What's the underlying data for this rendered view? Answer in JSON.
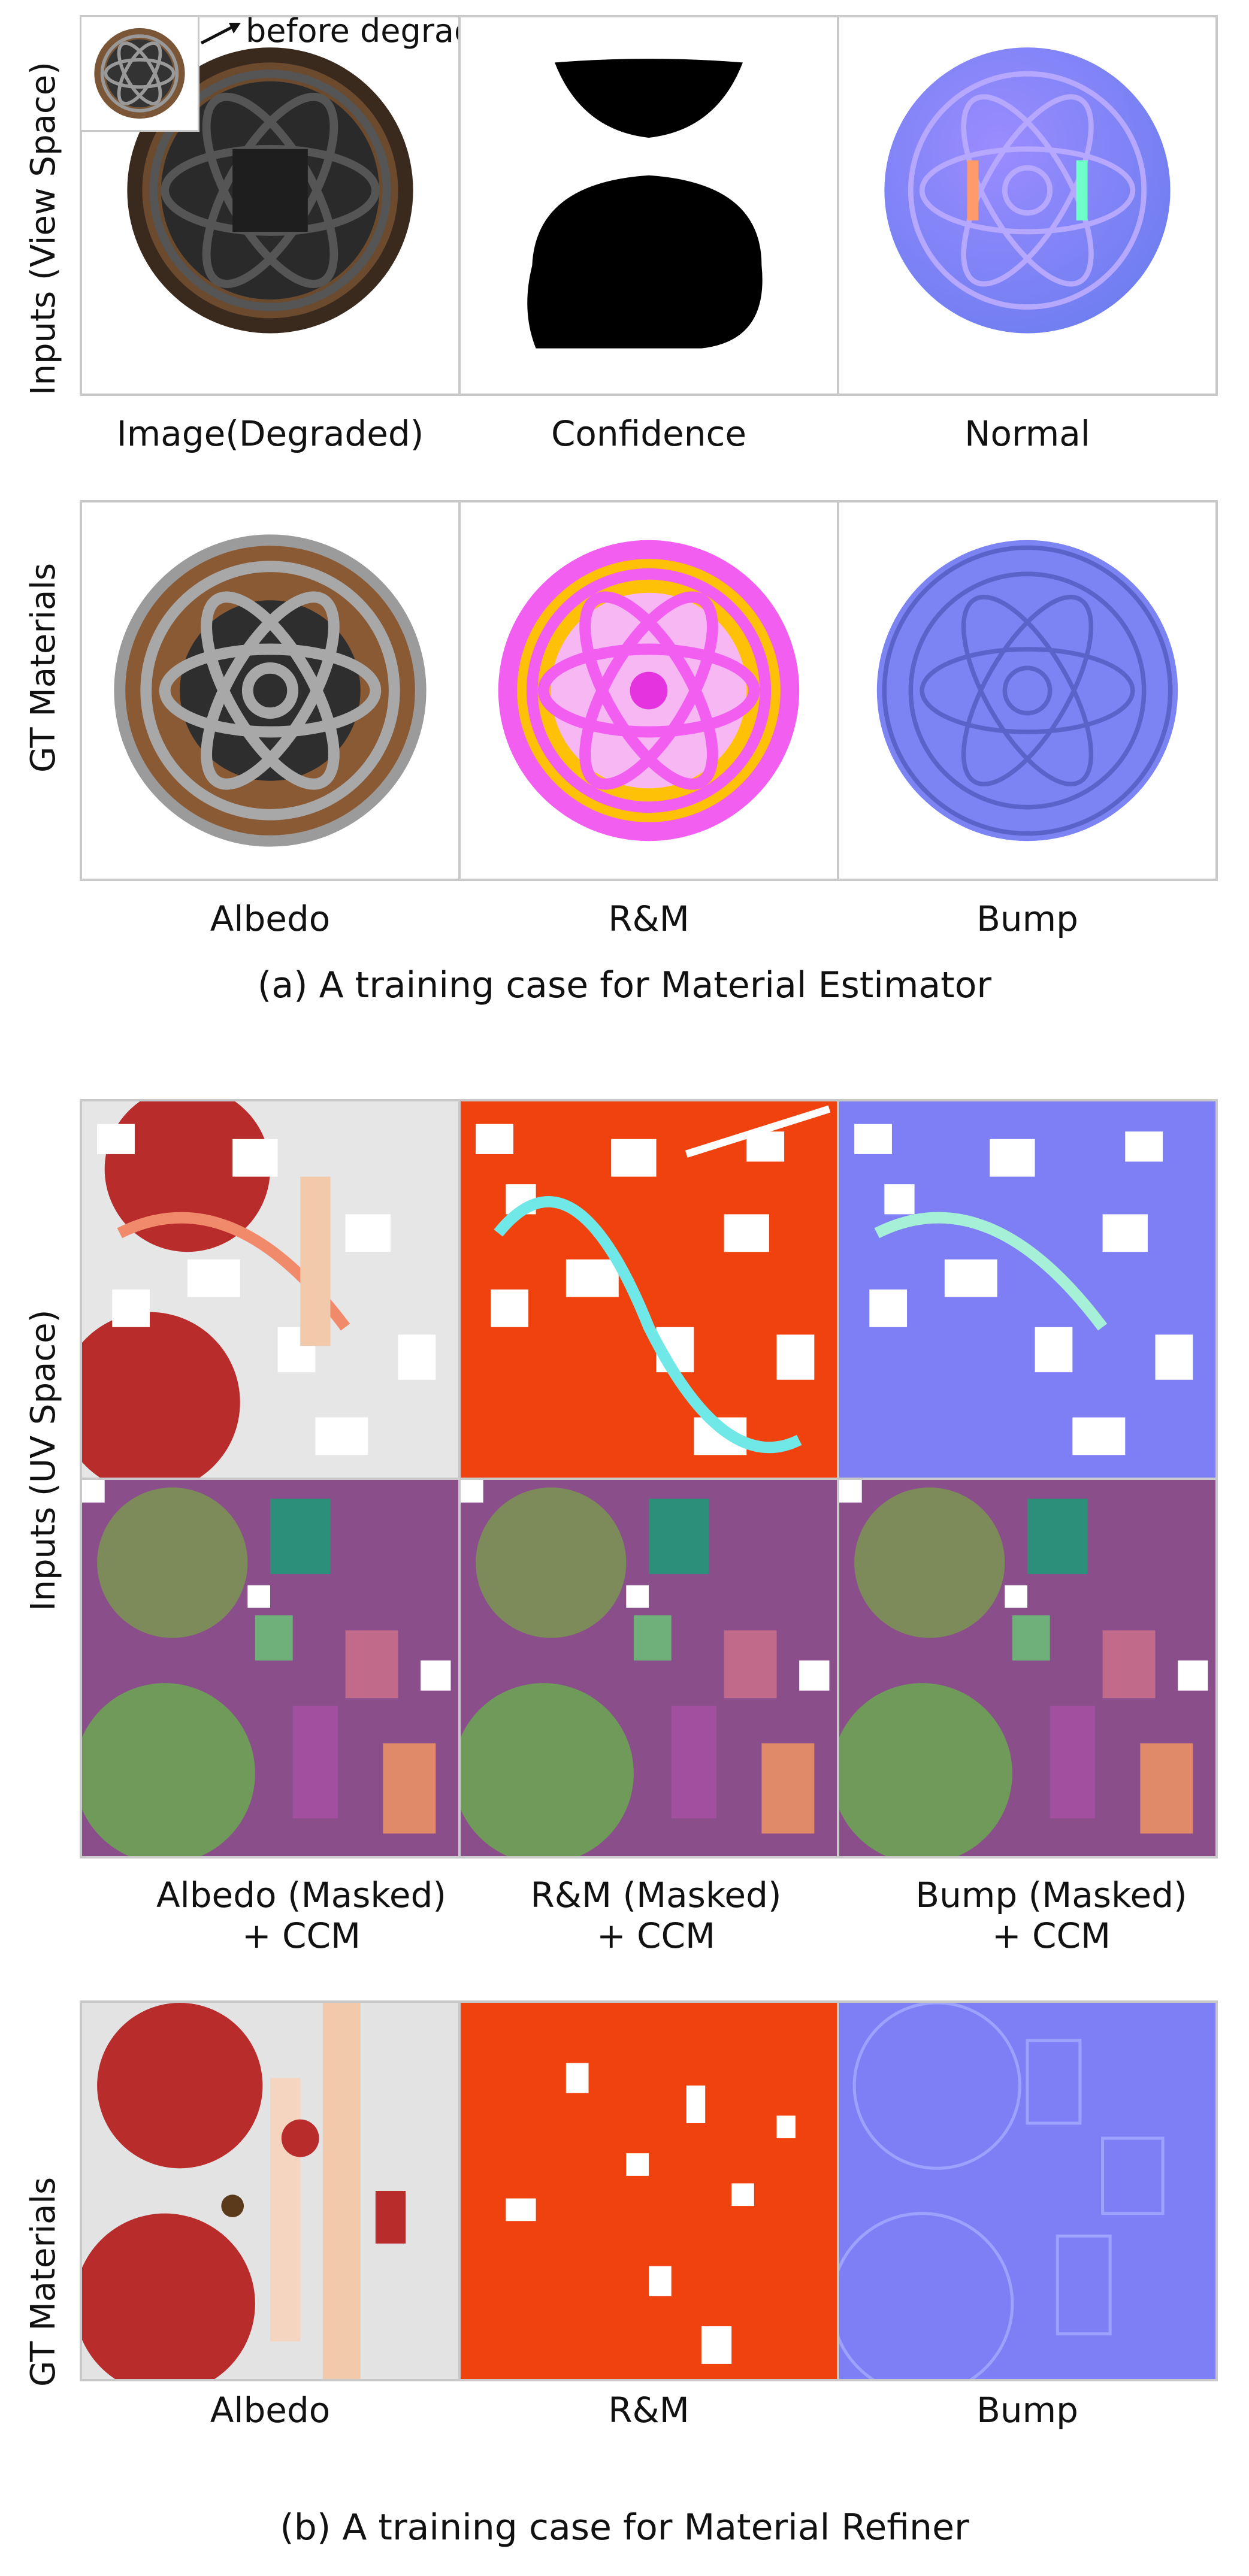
{
  "section_a": {
    "row_label_inputs": "Inputs (View Space)",
    "row_label_gt": "GT Materials",
    "inset_annotation": "before degradation",
    "input_captions": [
      "Image(Degraded)",
      "Confidence",
      "Normal"
    ],
    "gt_captions": [
      "Albedo",
      "R&M",
      "Bump"
    ],
    "caption": "(a) A training case for Material Estimator"
  },
  "section_b": {
    "row_label_inputs": "Inputs  (UV Space)",
    "row_label_gt": "GT Materials",
    "input_captions": [
      {
        "line1": "Albedo (Masked)",
        "line2": "+ CCM"
      },
      {
        "line1": "R&M (Masked)",
        "line2": "+ CCM"
      },
      {
        "line1": "Bump (Masked)",
        "line2": "+ CCM"
      }
    ],
    "gt_captions": [
      "Albedo",
      "R&M",
      "Bump"
    ],
    "caption": "(b) A training case for Material Refiner"
  },
  "colors": {
    "panel_border": "#c9c9c9",
    "normal_blue": "#7f7ff5",
    "rm_orange": "#f0420e",
    "rm_magenta": "#f25ef0",
    "rm_yellow": "#ffc107",
    "albedo_red": "#b92c2c",
    "wood_brown": "#8a5a34"
  }
}
